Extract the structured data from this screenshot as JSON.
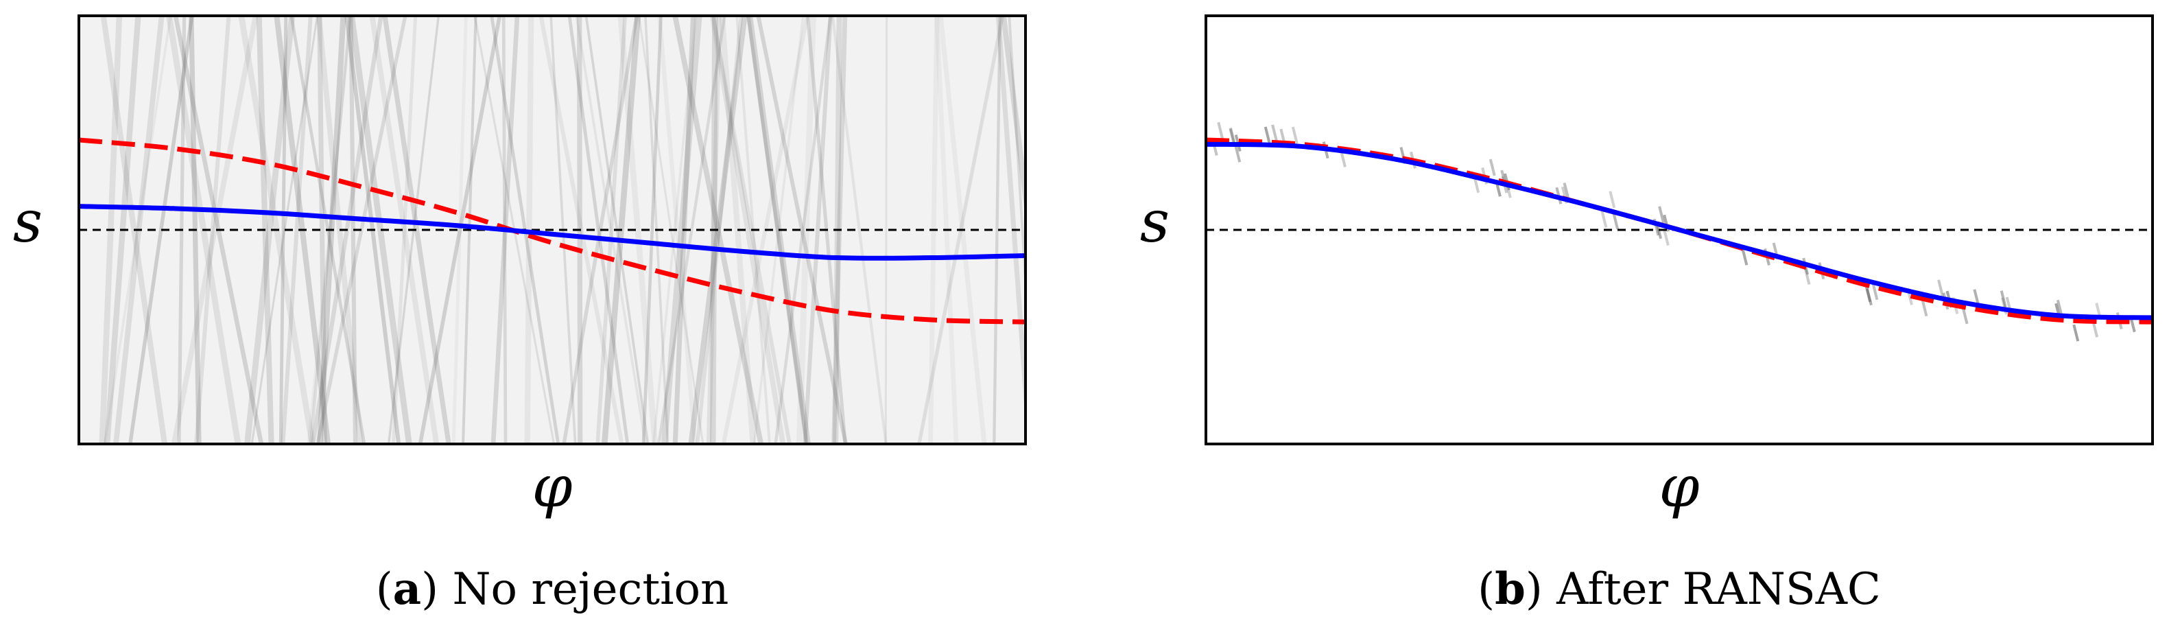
{
  "panels": [
    {
      "caption_letter": "a",
      "caption_text": "No rejection",
      "xlabel": "φ",
      "ylabel": "s"
    },
    {
      "caption_letter": "b",
      "caption_text": "After RANSAC",
      "xlabel": "φ",
      "ylabel": "s"
    }
  ],
  "colors": {
    "red_dashed": "#ff0000",
    "blue_solid": "#0000ff",
    "baseline": "#000000",
    "scatter": "#555555"
  },
  "chart_data": [
    {
      "type": "line",
      "panel": "a",
      "xlim": [
        0,
        1
      ],
      "ylim": [
        -1,
        1
      ],
      "grid": false,
      "background": "noisy sinogram (grayscale streaks)",
      "baseline_y": 0,
      "series": [
        {
          "style": "dashed",
          "color": "red",
          "x": [
            0.0,
            0.1,
            0.2,
            0.3,
            0.4,
            0.5,
            0.6,
            0.7,
            0.8,
            0.9,
            1.0
          ],
          "y": [
            0.42,
            0.38,
            0.31,
            0.2,
            0.08,
            -0.06,
            -0.18,
            -0.29,
            -0.38,
            -0.42,
            -0.43
          ]
        },
        {
          "style": "solid",
          "color": "blue",
          "x": [
            0.0,
            0.1,
            0.2,
            0.3,
            0.4,
            0.5,
            0.6,
            0.7,
            0.8,
            0.9,
            1.0
          ],
          "y": [
            0.11,
            0.1,
            0.08,
            0.05,
            0.02,
            -0.02,
            -0.06,
            -0.1,
            -0.13,
            -0.13,
            -0.12
          ]
        }
      ]
    },
    {
      "type": "line",
      "panel": "b",
      "xlim": [
        0,
        1
      ],
      "ylim": [
        -1,
        1
      ],
      "grid": false,
      "background": "sinogram after RANSAC outlier rejection (sparse inliers)",
      "baseline_y": 0,
      "series": [
        {
          "style": "dashed",
          "color": "red",
          "x": [
            0.0,
            0.1,
            0.2,
            0.3,
            0.4,
            0.5,
            0.6,
            0.7,
            0.8,
            0.9,
            1.0
          ],
          "y": [
            0.42,
            0.4,
            0.34,
            0.24,
            0.12,
            0.0,
            -0.13,
            -0.26,
            -0.36,
            -0.42,
            -0.43
          ]
        },
        {
          "style": "solid",
          "color": "blue",
          "x": [
            0.0,
            0.1,
            0.2,
            0.3,
            0.4,
            0.5,
            0.6,
            0.7,
            0.8,
            0.9,
            1.0
          ],
          "y": [
            0.4,
            0.39,
            0.33,
            0.23,
            0.12,
            0.0,
            -0.12,
            -0.24,
            -0.34,
            -0.4,
            -0.41
          ]
        }
      ]
    }
  ]
}
